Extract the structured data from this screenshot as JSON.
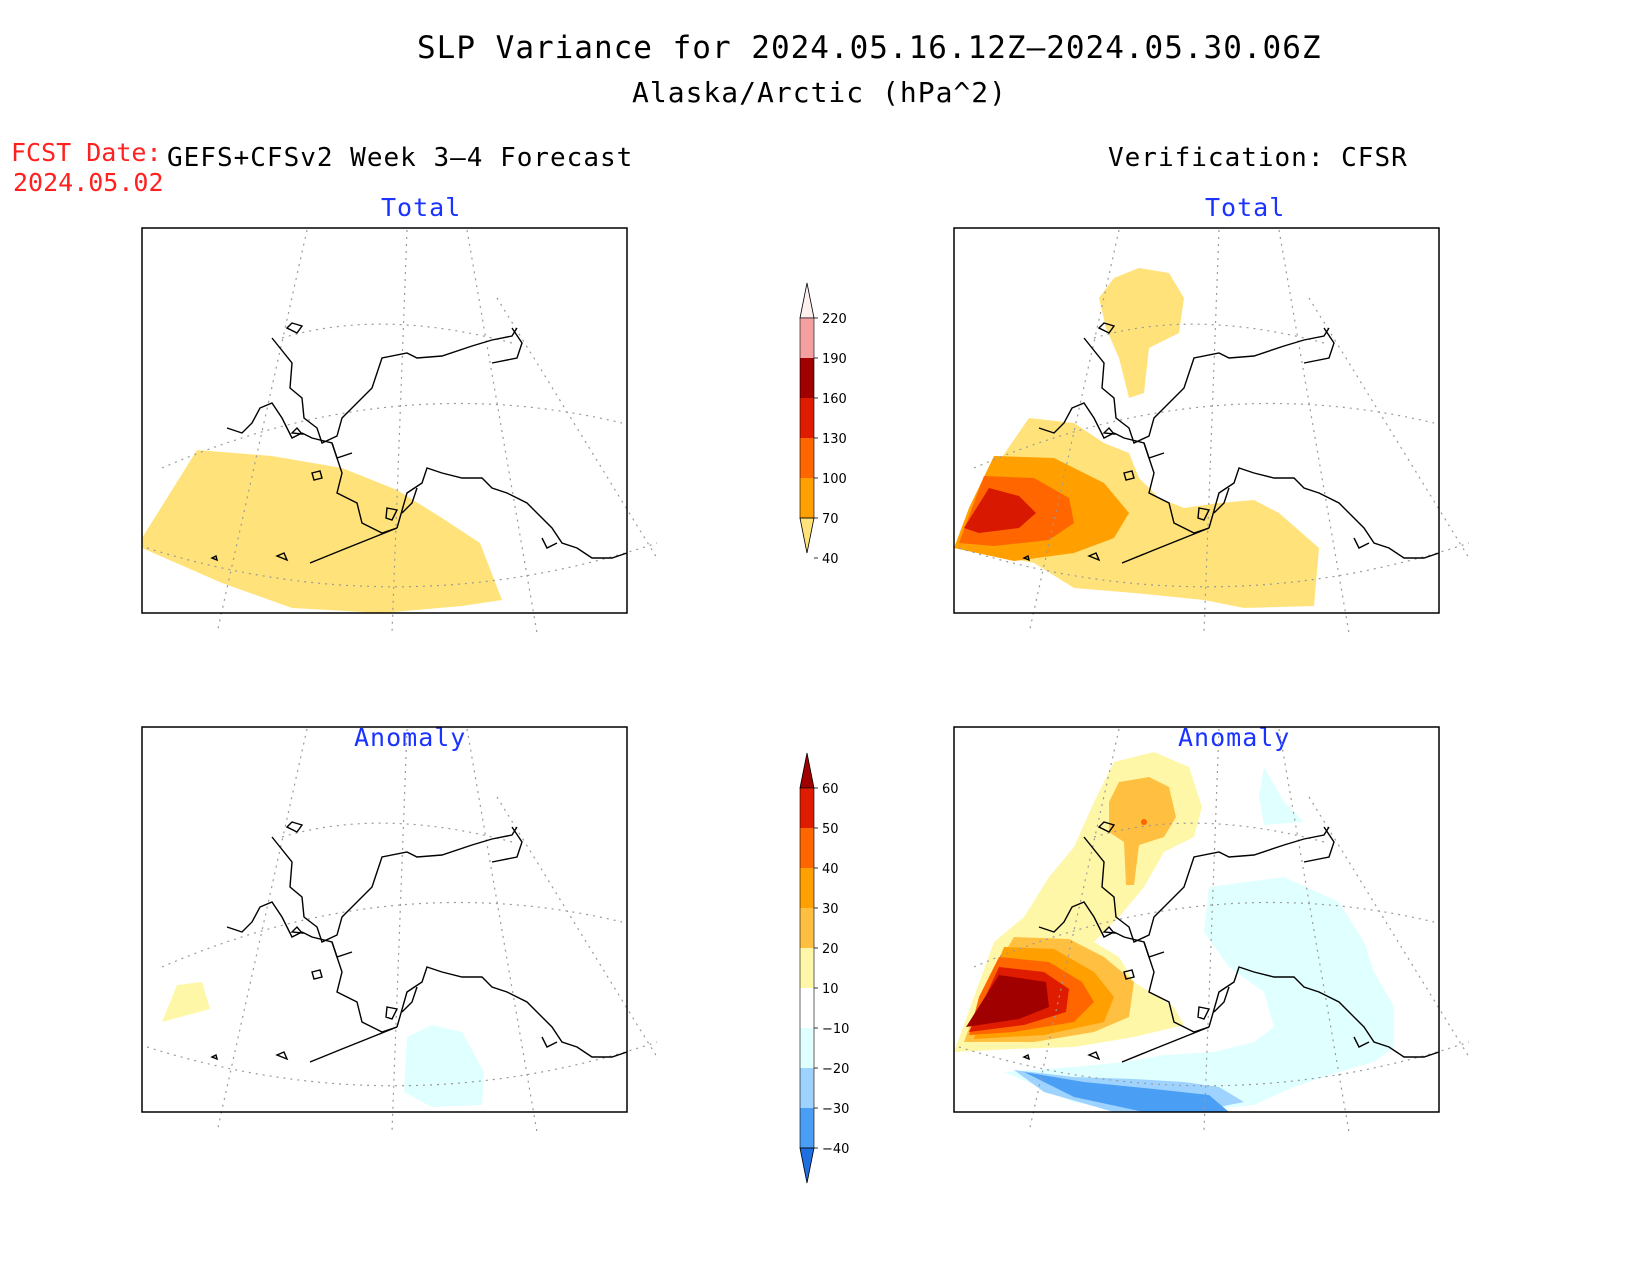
{
  "title": "SLP Variance for 2024.05.16.12Z–2024.05.30.06Z",
  "subtitle": "Alaska/Arctic (hPa^2)",
  "fcst_date_label": "FCST Date:",
  "fcst_date_value": "2024.05.02",
  "forecast_header": "GEFS+CFSv2 Week 3–4 Forecast",
  "verification_header": "Verification: CFSR",
  "panels": {
    "forecast_total_title": "Total",
    "forecast_anomaly_title": "Anomaly",
    "verification_total_title": "Total",
    "verification_anomaly_title": "Anomaly"
  },
  "total_colorbar": {
    "levels": [
      "220",
      "190",
      "160",
      "130",
      "100",
      "70",
      "40"
    ],
    "colors": [
      "#fff0f0",
      "#f4a0a0",
      "#a00000",
      "#e01c00",
      "#ff6600",
      "#ff9f00",
      "#ffe37a"
    ]
  },
  "anomaly_colorbar": {
    "levels": [
      "60",
      "50",
      "40",
      "30",
      "20",
      "10",
      "−10",
      "−20",
      "−30",
      "−40"
    ],
    "colors": [
      "#a00000",
      "#e01c00",
      "#ff6600",
      "#ff9f00",
      "#ffbf40",
      "#fff7a8",
      "#ffffff",
      "#e0ffff",
      "#9fd3ff",
      "#4a9ff5",
      "#1e6fe0"
    ]
  },
  "colors": {
    "title_text": "#000000",
    "fcst_text": "#ff2020",
    "panel_title_text": "#1a33ff",
    "coastline": "#000000",
    "graticule": "#999999"
  }
}
